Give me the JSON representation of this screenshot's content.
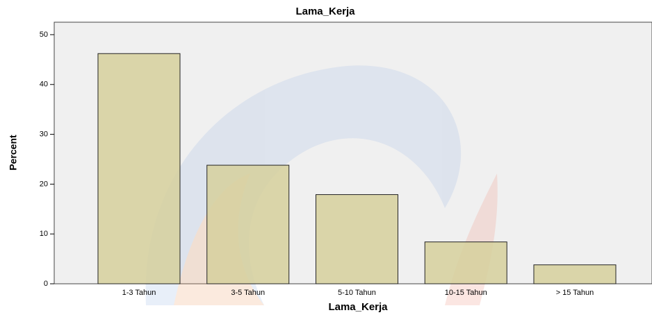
{
  "chart_data": {
    "type": "bar",
    "title": "Lama_Kerja",
    "x_label": "Lama_Kerja",
    "y_label": "Percent",
    "categories": [
      "1-3 Tahun",
      "3-5 Tahun",
      "5-10 Tahun",
      "10-15 Tahun",
      "> 15 Tahun"
    ],
    "values": [
      46.2,
      23.8,
      17.9,
      8.4,
      3.8
    ],
    "color": "#d6d09c",
    "ylim": [
      0,
      52.5
    ],
    "yticks": [
      0,
      10,
      20,
      30,
      40,
      50
    ],
    "grid": false
  }
}
